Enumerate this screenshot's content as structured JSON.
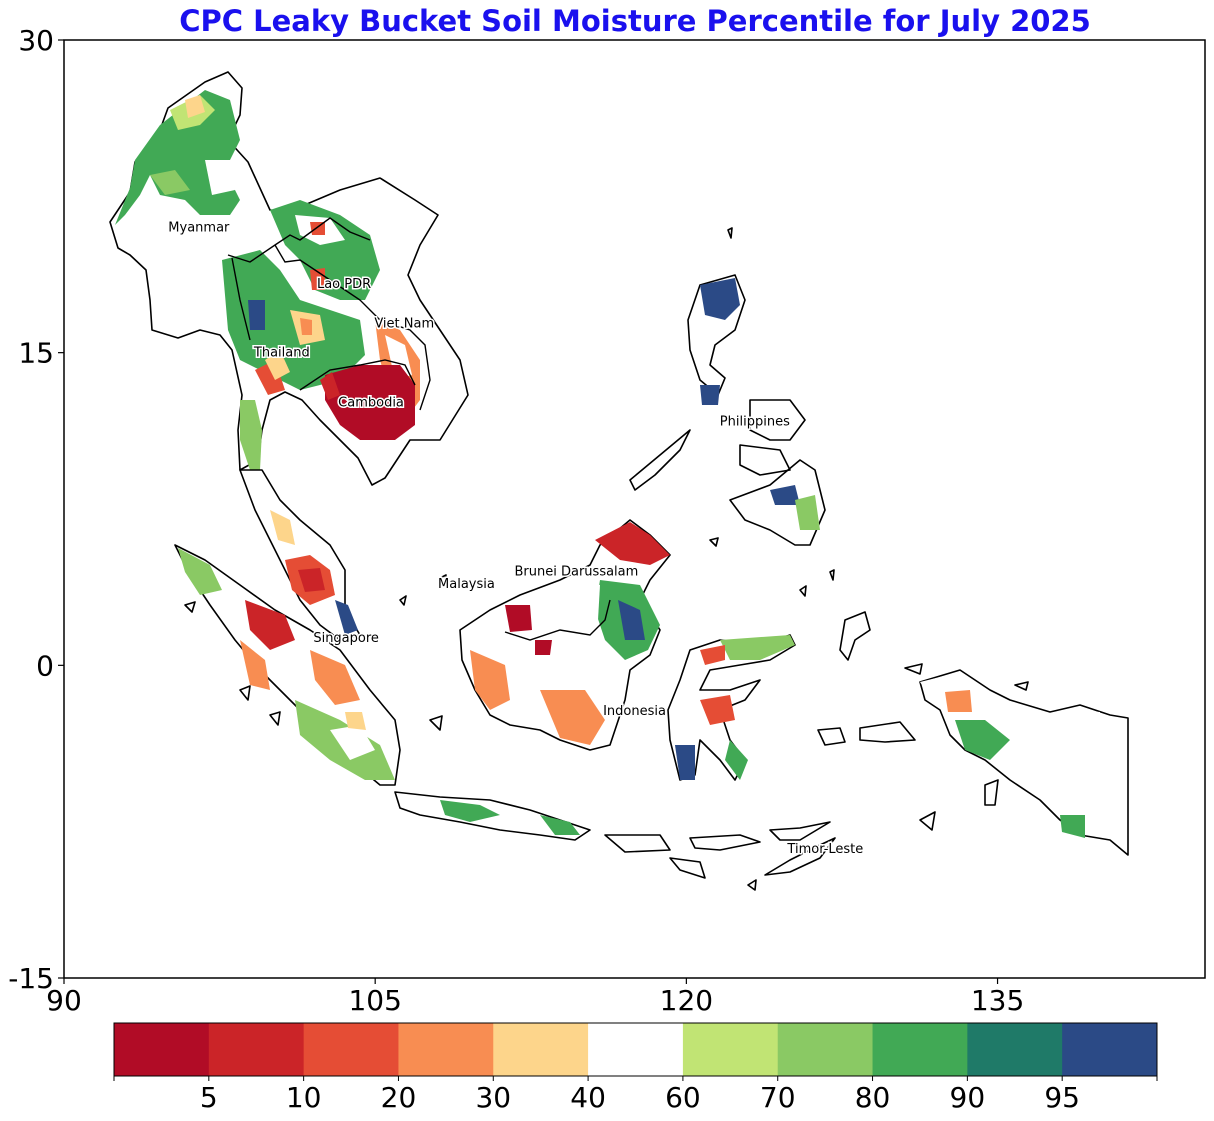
{
  "map": {
    "title": "CPC Leaky Bucket Soil Moisture Percentile for July 2025",
    "lon_ticks": [
      "90",
      "105",
      "120",
      "135"
    ],
    "lat_ticks": [
      "30",
      "15",
      "0",
      "-15"
    ],
    "extent": {
      "lon": [
        90,
        145
      ],
      "lat": [
        -15,
        30
      ]
    },
    "country_labels": [
      {
        "name": "Myanmar",
        "lon": 96.5,
        "lat": 21.0
      },
      {
        "name": "Lao PDR",
        "lon": 103.5,
        "lat": 18.3
      },
      {
        "name": "Viet Nam",
        "lon": 106.4,
        "lat": 16.4
      },
      {
        "name": "Thailand",
        "lon": 100.5,
        "lat": 15.0
      },
      {
        "name": "Cambodia",
        "lon": 104.8,
        "lat": 12.6
      },
      {
        "name": "Philippines",
        "lon": 123.3,
        "lat": 11.7
      },
      {
        "name": "Brunei Darussalam",
        "lon": 114.7,
        "lat": 4.5
      },
      {
        "name": "Malaysia",
        "lon": 109.4,
        "lat": 3.9
      },
      {
        "name": "Singapore",
        "lon": 103.6,
        "lat": 1.3
      },
      {
        "name": "Indonesia",
        "lon": 117.5,
        "lat": -2.2
      },
      {
        "name": "Timor-Leste",
        "lon": 126.7,
        "lat": -8.8
      }
    ]
  },
  "colorbar": {
    "tick_labels": [
      "5",
      "10",
      "20",
      "30",
      "40",
      "60",
      "70",
      "80",
      "90",
      "95"
    ],
    "colors": [
      "#b10c26",
      "#cb2428",
      "#e54d35",
      "#f88d52",
      "#fdd58b",
      "#ffffff",
      "#c1e474",
      "#8ac964",
      "#41a955",
      "#1f7a68",
      "#2b4a86"
    ]
  }
}
